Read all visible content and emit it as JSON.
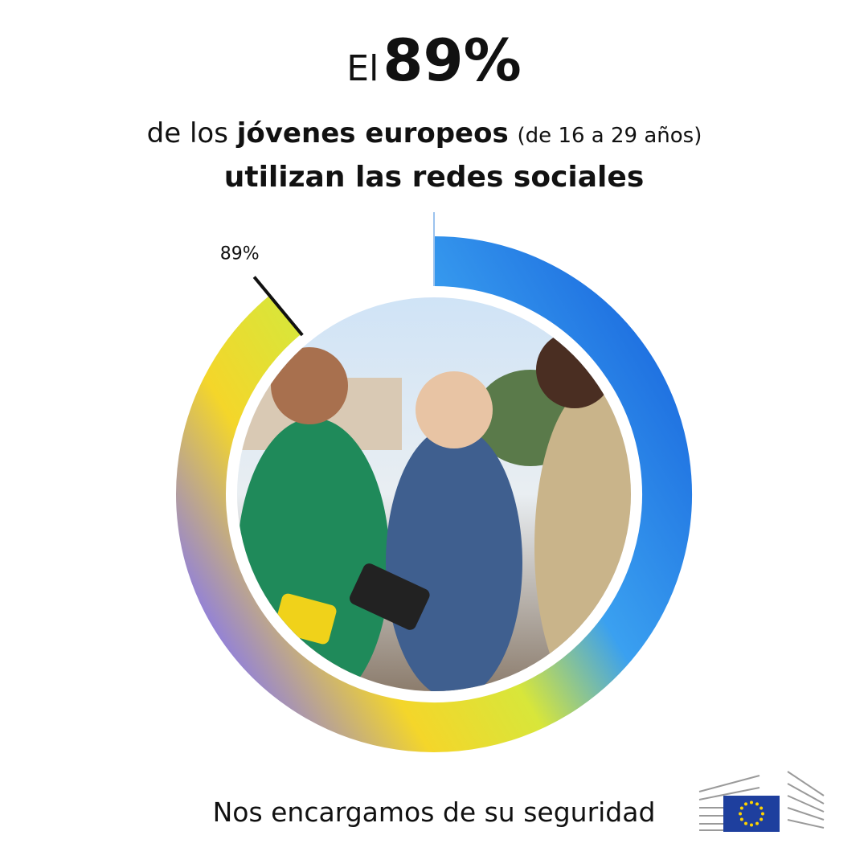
{
  "chart_data": {
    "type": "donut",
    "title_parts": {
      "prefix": "El",
      "highlight": "89%",
      "line2_start": "de los",
      "line2_bold": "jóvenes europeos",
      "line2_note": "(de 16 a 29 años)",
      "line3": "utilizan las redes sociales"
    },
    "values": [
      89
    ],
    "value_labels": [
      "89%"
    ],
    "footer": "Nos encargamos de su seguridad"
  }
}
